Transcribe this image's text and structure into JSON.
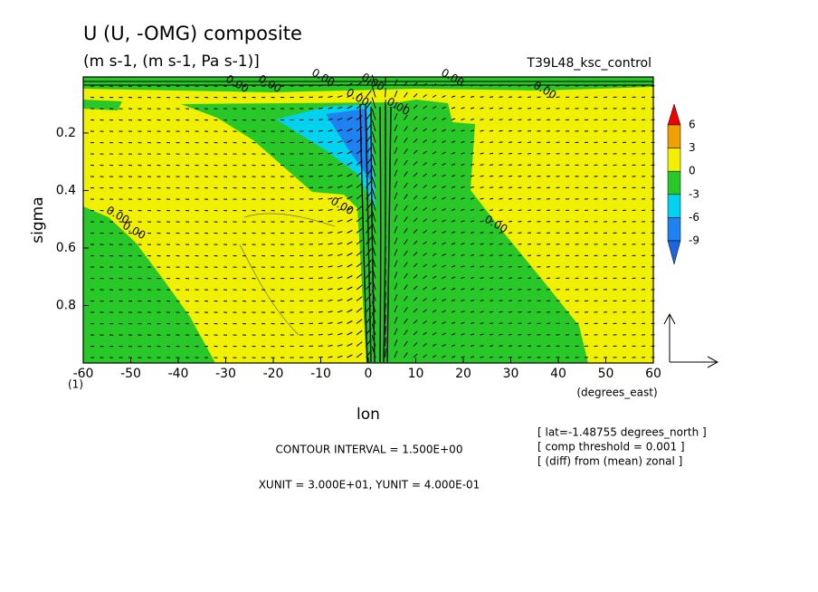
{
  "chart_data": {
    "type": "contour",
    "title": "U (U, -OMG) composite",
    "subtitle": "(m s-1, (m s-1, Pa s-1)]",
    "run_label": "T39L48_ksc_control",
    "x_label": "lon",
    "x_unit_label": "(degrees_east)",
    "y_label": "sigma",
    "y_bottom_label": "(1)",
    "xlim": [
      -60,
      60
    ],
    "xticks": [
      -60,
      -50,
      -40,
      -30,
      -20,
      -10,
      0,
      10,
      20,
      30,
      40,
      50,
      60
    ],
    "ylim": [
      1,
      0.005
    ],
    "yticks": [
      0.2,
      0.4,
      0.6,
      0.8
    ],
    "contour_labels": [
      "0.00",
      "0.00",
      "0.00",
      "0.00",
      "0.00",
      "0.00",
      "0.00",
      "0.00",
      "0.00",
      "0.00",
      "0.00",
      "0.00"
    ],
    "colorbar": {
      "levels": [
        6,
        3,
        0,
        -3,
        -6,
        -9
      ],
      "colors": [
        "#f00000",
        "#f0a000",
        "#f0f000",
        "#28c828",
        "#00d2f0",
        "#1e82f0",
        "#1e64dc"
      ]
    },
    "notes": [
      "CONTOUR INTERVAL = 1.500E+00",
      "XUNIT = 3.000E+01, YUNIT = 4.000E-01"
    ],
    "info": [
      "[ lat=-1.48755 degrees_north ]",
      "[ comp threshold = 0.001 ]",
      "[ (diff) from (mean) zonal ]"
    ]
  }
}
